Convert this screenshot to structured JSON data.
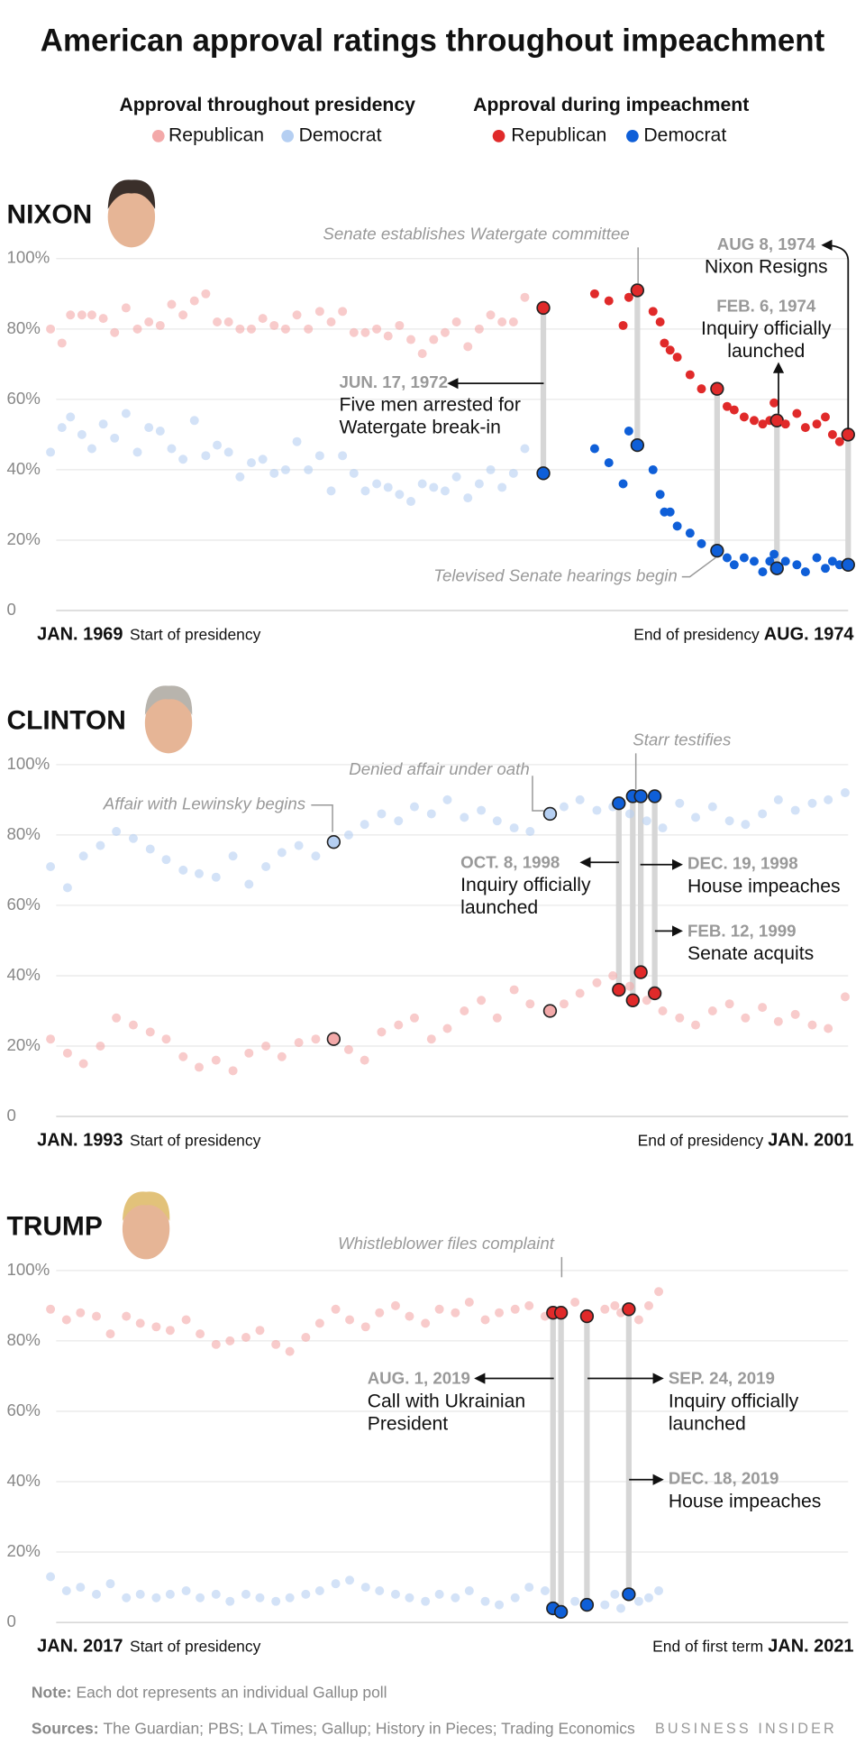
{
  "title": "American approval ratings throughout impeachment",
  "legend_headings": [
    "Approval throughout presidency",
    "Approval during impeachment"
  ],
  "chart_data": [
    {
      "type": "scatter",
      "title": "NIXON",
      "x_start": {
        "date": "JAN. 1969",
        "label": "Start of presidency"
      },
      "x_end": {
        "label": "End of presidency",
        "date": "AUG. 1974"
      },
      "xlim": [
        1969.0,
        1974.6
      ],
      "ylim": [
        0,
        100
      ],
      "yticks": [
        0,
        {
          "value": 20,
          "label": "20%"
        },
        {
          "value": 40,
          "label": "40%"
        },
        {
          "value": 60,
          "label": "60%"
        },
        {
          "value": 80,
          "label": "80%"
        },
        {
          "value": 100,
          "label": "100%"
        }
      ],
      "grid": true,
      "series": [
        {
          "name": "Republican",
          "color": "#f3a9a9",
          "x": [
            1969.0,
            1969.08,
            1969.14,
            1969.22,
            1969.29,
            1969.37,
            1969.45,
            1969.53,
            1969.61,
            1969.69,
            1969.77,
            1969.85,
            1969.93,
            1970.01,
            1970.09,
            1970.17,
            1970.25,
            1970.33,
            1970.41,
            1970.49,
            1970.57,
            1970.65,
            1970.73,
            1970.81,
            1970.89,
            1970.97,
            1971.05,
            1971.13,
            1971.21,
            1971.29,
            1971.37,
            1971.45,
            1971.53,
            1971.61,
            1971.69,
            1971.77,
            1971.85,
            1971.93,
            1972.01,
            1972.09,
            1972.17,
            1972.25,
            1972.33
          ],
          "values": [
            80,
            76,
            84,
            84,
            84,
            83,
            79,
            86,
            80,
            82,
            81,
            87,
            84,
            88,
            90,
            82,
            82,
            80,
            80,
            83,
            81,
            80,
            84,
            80,
            85,
            82,
            85,
            79,
            79,
            80,
            78,
            81,
            77,
            73,
            77,
            79,
            82,
            75,
            80,
            84,
            82,
            82,
            89
          ]
        },
        {
          "name": "Democrat",
          "color": "#b5cff2",
          "x": [
            1969.0,
            1969.08,
            1969.14,
            1969.22,
            1969.29,
            1969.37,
            1969.45,
            1969.53,
            1969.61,
            1969.69,
            1969.77,
            1969.85,
            1969.93,
            1970.01,
            1970.09,
            1970.17,
            1970.25,
            1970.33,
            1970.41,
            1970.49,
            1970.57,
            1970.65,
            1970.73,
            1970.81,
            1970.89,
            1970.97,
            1971.05,
            1971.13,
            1971.21,
            1971.29,
            1971.37,
            1971.45,
            1971.53,
            1971.61,
            1971.69,
            1971.77,
            1971.85,
            1971.93,
            1972.01,
            1972.09,
            1972.17,
            1972.25,
            1972.33
          ],
          "values": [
            45,
            52,
            55,
            50,
            46,
            53,
            49,
            56,
            45,
            52,
            51,
            46,
            43,
            54,
            44,
            47,
            45,
            38,
            42,
            43,
            39,
            40,
            48,
            40,
            44,
            34,
            44,
            39,
            34,
            36,
            35,
            33,
            31,
            36,
            35,
            34,
            38,
            32,
            36,
            40,
            35,
            39,
            46
          ]
        },
        {
          "name": "Republican",
          "color": "#e02a2a",
          "x": [
            1972.46,
            1972.82,
            1972.92,
            1973.02,
            1973.06,
            1973.12,
            1973.23,
            1973.28,
            1973.31,
            1973.35,
            1973.4,
            1973.49,
            1973.57,
            1973.68,
            1973.75,
            1973.8,
            1973.87,
            1973.94,
            1974.0,
            1974.05,
            1974.08,
            1974.1,
            1974.16,
            1974.24,
            1974.3,
            1974.38,
            1974.44,
            1974.49,
            1974.54,
            1974.6
          ],
          "values": [
            86,
            90,
            88,
            81,
            89,
            91,
            85,
            82,
            76,
            74,
            72,
            67,
            63,
            63,
            58,
            57,
            55,
            54,
            53,
            54,
            59,
            54,
            53,
            56,
            52,
            53,
            55,
            50,
            48,
            50
          ],
          "outlined": [
            0,
            5,
            13,
            21,
            29
          ]
        },
        {
          "name": "Democrat",
          "color": "#0f5fd8",
          "x": [
            1972.46,
            1972.82,
            1972.92,
            1973.02,
            1973.06,
            1973.12,
            1973.23,
            1973.28,
            1973.31,
            1973.35,
            1973.4,
            1973.49,
            1973.57,
            1973.68,
            1973.75,
            1973.8,
            1973.87,
            1973.94,
            1974.0,
            1974.05,
            1974.08,
            1974.1,
            1974.16,
            1974.24,
            1974.3,
            1974.38,
            1974.44,
            1974.49,
            1974.54,
            1974.6
          ],
          "values": [
            39,
            46,
            42,
            36,
            51,
            47,
            40,
            33,
            28,
            28,
            24,
            22,
            19,
            17,
            15,
            13,
            15,
            14,
            11,
            14,
            16,
            12,
            14,
            13,
            11,
            15,
            12,
            14,
            13,
            13
          ],
          "outlined": [
            0,
            5,
            13,
            21,
            29
          ]
        }
      ],
      "annotations": [
        {
          "text": "Senate establishes Watergate committee"
        },
        {
          "date": "JUN. 17, 1972",
          "lines": [
            "Five men arrested for",
            "Watergate break-in"
          ]
        },
        {
          "text": "Televised Senate hearings begin"
        },
        {
          "date": "FEB. 6, 1974",
          "lines": [
            "Inquiry officially",
            "launched"
          ]
        },
        {
          "date": "AUG 8, 1974",
          "lines": [
            "Nixon Resigns"
          ]
        }
      ]
    },
    {
      "type": "scatter",
      "title": "CLINTON",
      "x_start": {
        "date": "JAN. 1993",
        "label": "Start of presidency"
      },
      "x_end": {
        "label": "End of presidency",
        "date": "JAN. 2001"
      },
      "xlim": [
        1993.0,
        2001.0
      ],
      "ylim": [
        0,
        100
      ],
      "yticks": [
        0,
        {
          "value": 20,
          "label": "20%"
        },
        {
          "value": 40,
          "label": "40%"
        },
        {
          "value": 60,
          "label": "60%"
        },
        {
          "value": 80,
          "label": "80%"
        },
        {
          "value": 100,
          "label": "100%"
        }
      ],
      "grid": true,
      "series": [
        {
          "name": "Republican",
          "color": "#f3a9a9",
          "x": [
            1993.0,
            1993.17,
            1993.33,
            1993.5,
            1993.66,
            1993.83,
            1994.0,
            1994.16,
            1994.33,
            1994.49,
            1994.66,
            1994.83,
            1994.99,
            1995.16,
            1995.32,
            1995.49,
            1995.66,
            1995.84,
            1995.99,
            1996.15,
            1996.32,
            1996.49,
            1996.65,
            1996.82,
            1996.98,
            1997.15,
            1997.32,
            1997.48,
            1997.65,
            1997.81,
            1998.01,
            1998.15,
            1998.31,
            1998.48,
            1998.64,
            1998.81,
            1998.98,
            1999.14,
            1999.31,
            1999.47,
            1999.64,
            1999.81,
            1999.97,
            2000.14,
            2000.3,
            2000.47,
            2000.64,
            2000.8,
            2000.97
          ],
          "values": [
            22,
            18,
            15,
            20,
            28,
            26,
            24,
            22,
            17,
            14,
            16,
            13,
            18,
            20,
            17,
            21,
            22,
            22,
            19,
            16,
            24,
            26,
            28,
            22,
            25,
            30,
            33,
            28,
            36,
            32,
            30,
            32,
            35,
            38,
            40,
            37,
            33,
            30,
            28,
            26,
            30,
            32,
            28,
            31,
            27,
            29,
            26,
            25,
            34
          ],
          "outlined": [
            17,
            30
          ]
        },
        {
          "name": "Democrat",
          "color": "#b5cff2",
          "x": [
            1993.0,
            1993.17,
            1993.33,
            1993.5,
            1993.66,
            1993.83,
            1994.0,
            1994.16,
            1994.33,
            1994.49,
            1994.66,
            1994.83,
            1994.99,
            1995.16,
            1995.32,
            1995.49,
            1995.66,
            1995.84,
            1995.99,
            1996.15,
            1996.32,
            1996.49,
            1996.65,
            1996.82,
            1996.98,
            1997.15,
            1997.32,
            1997.48,
            1997.65,
            1997.81,
            1998.01,
            1998.15,
            1998.31,
            1998.48,
            1998.64,
            1998.81,
            1998.98,
            1999.14,
            1999.31,
            1999.47,
            1999.64,
            1999.81,
            1999.97,
            2000.14,
            2000.3,
            2000.47,
            2000.64,
            2000.8,
            2000.97
          ],
          "values": [
            71,
            65,
            74,
            77,
            81,
            79,
            76,
            73,
            70,
            69,
            68,
            74,
            66,
            71,
            75,
            77,
            74,
            78,
            80,
            83,
            86,
            84,
            88,
            86,
            90,
            85,
            87,
            84,
            82,
            81,
            86,
            88,
            90,
            87,
            88,
            86,
            84,
            82,
            89,
            85,
            88,
            84,
            83,
            86,
            90,
            87,
            89,
            90,
            92
          ],
          "outlined": [
            17,
            30
          ]
        },
        {
          "name": "Republican",
          "color": "#e02a2a",
          "x": [
            1998.7,
            1998.84,
            1998.92,
            1999.06
          ],
          "values": [
            36,
            33,
            41,
            35
          ],
          "outlined": [
            0,
            1,
            2,
            3
          ]
        },
        {
          "name": "Democrat",
          "color": "#0f5fd8",
          "x": [
            1998.7,
            1998.84,
            1998.92,
            1999.06
          ],
          "values": [
            89,
            91,
            91,
            91
          ],
          "outlined": [
            0,
            1,
            2,
            3
          ]
        }
      ],
      "annotations": [
        {
          "text": "Affair with Lewinsky begins"
        },
        {
          "text": "Denied affair under oath"
        },
        {
          "text": "Starr testifies"
        },
        {
          "date": "OCT. 8, 1998",
          "lines": [
            "Inquiry officially",
            "launched"
          ]
        },
        {
          "date": "DEC. 19, 1998",
          "lines": [
            "House impeaches"
          ]
        },
        {
          "date": "FEB. 12, 1999",
          "lines": [
            "Senate acquits"
          ]
        }
      ]
    },
    {
      "type": "scatter",
      "title": "TRUMP",
      "x_start": {
        "date": "JAN. 2017",
        "label": "Start of presidency"
      },
      "x_end": {
        "label": "End of first term",
        "date": "JAN. 2021"
      },
      "xlim": [
        2017.0,
        2021.0
      ],
      "ylim": [
        0,
        100
      ],
      "yticks": [
        0,
        {
          "value": 20,
          "label": "20%"
        },
        {
          "value": 40,
          "label": "40%"
        },
        {
          "value": 60,
          "label": "60%"
        },
        {
          "value": 80,
          "label": "80%"
        },
        {
          "value": 100,
          "label": "100%"
        }
      ],
      "grid": true,
      "series": [
        {
          "name": "Republican",
          "color": "#f3a9a9",
          "x": [
            2017.0,
            2017.08,
            2017.15,
            2017.23,
            2017.3,
            2017.38,
            2017.45,
            2017.53,
            2017.6,
            2017.68,
            2017.75,
            2017.83,
            2017.9,
            2017.98,
            2018.05,
            2018.13,
            2018.2,
            2018.28,
            2018.35,
            2018.43,
            2018.5,
            2018.58,
            2018.65,
            2018.73,
            2018.8,
            2018.88,
            2018.95,
            2019.03,
            2019.1,
            2019.18,
            2019.25,
            2019.33,
            2019.4,
            2019.48,
            2019.63,
            2019.78,
            2019.83,
            2019.86,
            2019.95,
            2020.0,
            2020.05
          ],
          "values": [
            89,
            86,
            88,
            87,
            82,
            87,
            85,
            84,
            83,
            86,
            82,
            79,
            80,
            81,
            83,
            79,
            77,
            81,
            85,
            89,
            86,
            84,
            88,
            90,
            87,
            85,
            89,
            88,
            91,
            86,
            88,
            89,
            90,
            87,
            91,
            89,
            90,
            88,
            86,
            90,
            94
          ]
        },
        {
          "name": "Democrat",
          "color": "#b5cff2",
          "x": [
            2017.0,
            2017.08,
            2017.15,
            2017.23,
            2017.3,
            2017.38,
            2017.45,
            2017.53,
            2017.6,
            2017.68,
            2017.75,
            2017.83,
            2017.9,
            2017.98,
            2018.05,
            2018.13,
            2018.2,
            2018.28,
            2018.35,
            2018.43,
            2018.5,
            2018.58,
            2018.65,
            2018.73,
            2018.8,
            2018.88,
            2018.95,
            2019.03,
            2019.1,
            2019.18,
            2019.25,
            2019.33,
            2019.4,
            2019.48,
            2019.63,
            2019.78,
            2019.83,
            2019.86,
            2019.95,
            2020.0,
            2020.05
          ],
          "values": [
            13,
            9,
            10,
            8,
            11,
            7,
            8,
            7,
            8,
            9,
            7,
            8,
            6,
            8,
            7,
            6,
            7,
            8,
            9,
            11,
            12,
            10,
            9,
            8,
            7,
            6,
            8,
            7,
            9,
            6,
            5,
            7,
            10,
            9,
            6,
            5,
            8,
            4,
            6,
            7,
            9
          ]
        },
        {
          "name": "Republican",
          "color": "#e02a2a",
          "x": [
            2019.52,
            2019.56,
            2019.69,
            2019.9
          ],
          "values": [
            88,
            88,
            87,
            89
          ],
          "outlined": [
            0,
            1,
            2,
            3
          ]
        },
        {
          "name": "Democrat",
          "color": "#0f5fd8",
          "x": [
            2019.52,
            2019.56,
            2019.69,
            2019.9
          ],
          "values": [
            4,
            3,
            5,
            8
          ],
          "outlined": [
            0,
            1,
            2,
            3
          ]
        }
      ],
      "annotations": [
        {
          "text": "Whistleblower files complaint"
        },
        {
          "date": "AUG. 1, 2019",
          "lines": [
            "Call with Ukrainian",
            "President"
          ]
        },
        {
          "date": "SEP. 24, 2019",
          "lines": [
            "Inquiry officially",
            "launched"
          ]
        },
        {
          "date": "DEC. 18, 2019",
          "lines": [
            "House impeaches"
          ]
        }
      ]
    }
  ],
  "note": {
    "label": "Note:",
    "text": "Each dot represents an individual Gallup poll"
  },
  "sources": {
    "label": "Sources:",
    "text": "The Guardian; PBS; LA Times; Gallup; History in Pieces; Trading Economics"
  },
  "brand": "BUSINESS INSIDER"
}
